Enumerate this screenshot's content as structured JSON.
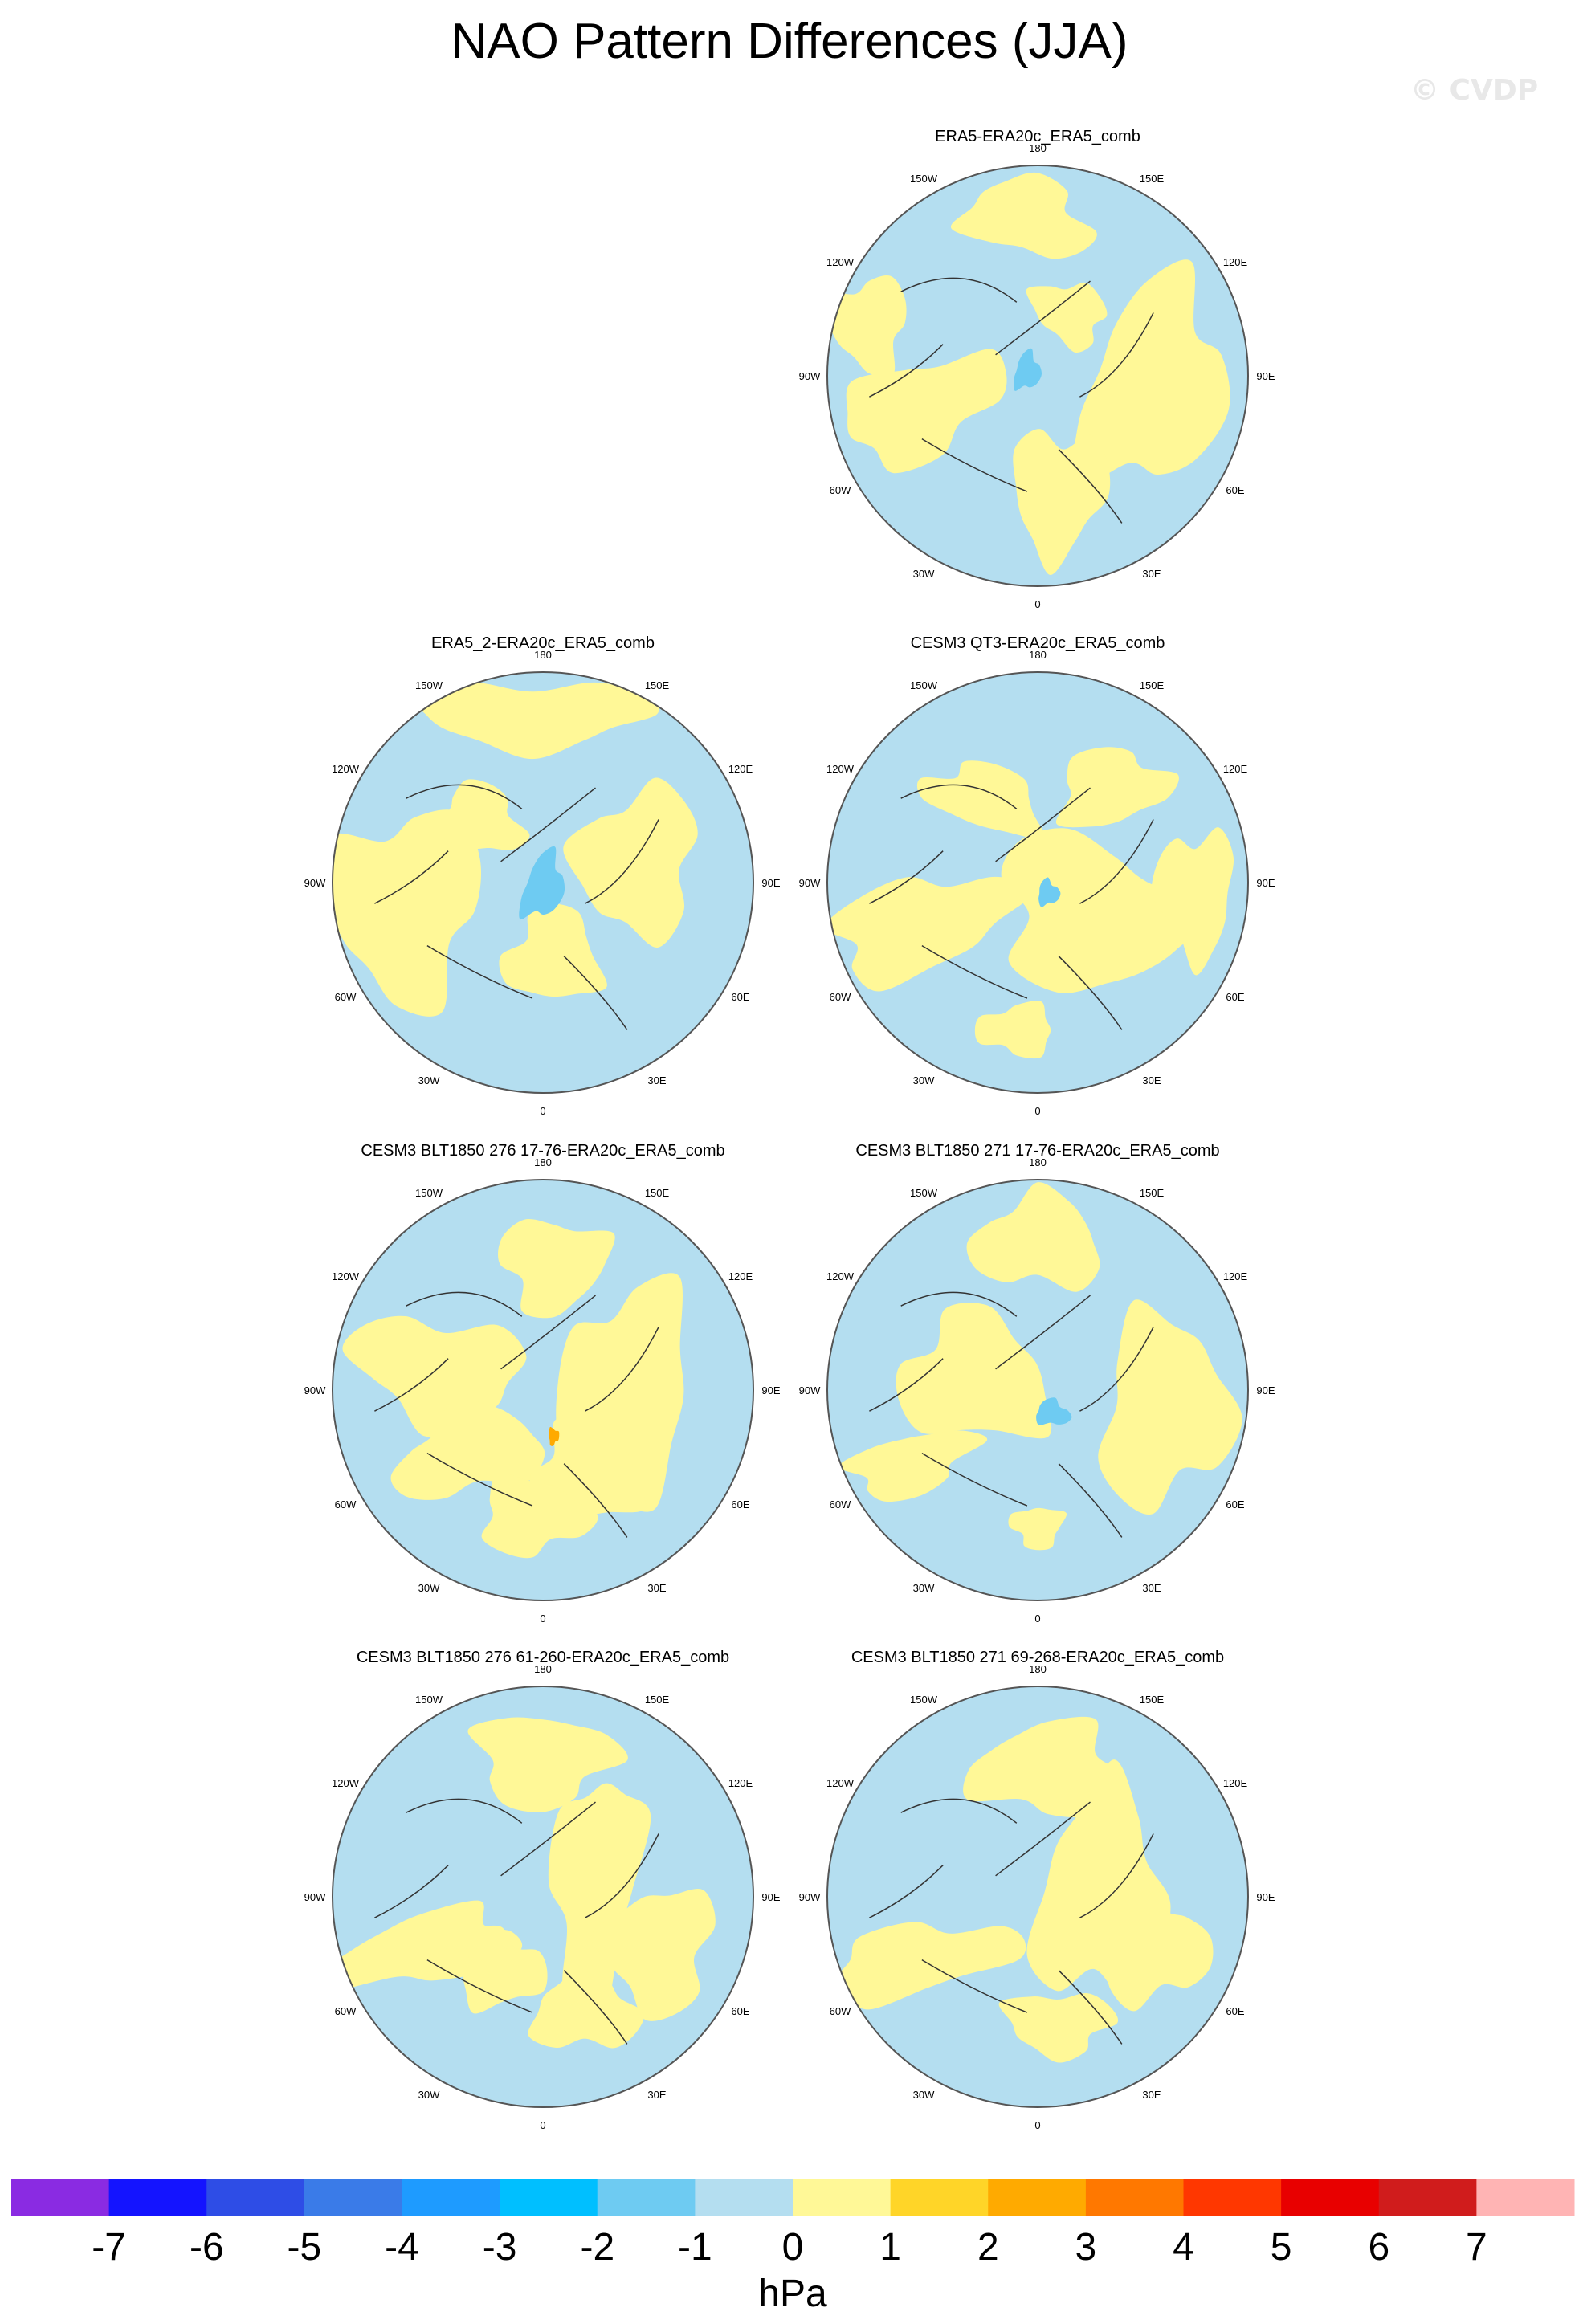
{
  "title": "NAO Pattern Differences (JJA)",
  "watermark": "© CVDP",
  "longitude_labels": [
    "180",
    "150E",
    "120E",
    "90E",
    "60E",
    "30E",
    "0",
    "30W",
    "60W",
    "90W",
    "120W",
    "150W"
  ],
  "panels": [
    {
      "title": "ERA5-ERA20c_ERA5_comb",
      "row": 0,
      "col": 1
    },
    {
      "title": "ERA5_2-ERA20c_ERA5_comb",
      "row": 1,
      "col": 0
    },
    {
      "title": "CESM3 QT3-ERA20c_ERA5_comb",
      "row": 1,
      "col": 1
    },
    {
      "title": "CESM3 BLT1850 276 17-76-ERA20c_ERA5_comb",
      "row": 2,
      "col": 0
    },
    {
      "title": "CESM3 BLT1850 271 17-76-ERA20c_ERA5_comb",
      "row": 2,
      "col": 1
    },
    {
      "title": "CESM3 BLT1850 276 61-260-ERA20c_ERA5_comb",
      "row": 3,
      "col": 0
    },
    {
      "title": "CESM3 BLT1850 271 69-268-ERA20c_ERA5_comb",
      "row": 3,
      "col": 1
    }
  ],
  "colorbar": {
    "unit": "hPa",
    "tick_labels": [
      "-7",
      "-6",
      "-5",
      "-4",
      "-3",
      "-2",
      "-1",
      "0",
      "1",
      "2",
      "3",
      "4",
      "5",
      "6",
      "7"
    ],
    "colors": [
      "#8a2be2",
      "#1414ff",
      "#2e4de6",
      "#3a7be8",
      "#1e9bff",
      "#00bfff",
      "#6ecbf2",
      "#b4def0",
      "#fff897",
      "#ffd528",
      "#ffaa00",
      "#ff7800",
      "#ff3700",
      "#e80000",
      "#d01c1c",
      "#ffb4b4"
    ]
  },
  "fill_colors": {
    "ocean_base": "#b4def0",
    "positive": "#fff897",
    "negative": "#6ecbf2",
    "orange": "#ffaa00",
    "coast": "#333333"
  }
}
